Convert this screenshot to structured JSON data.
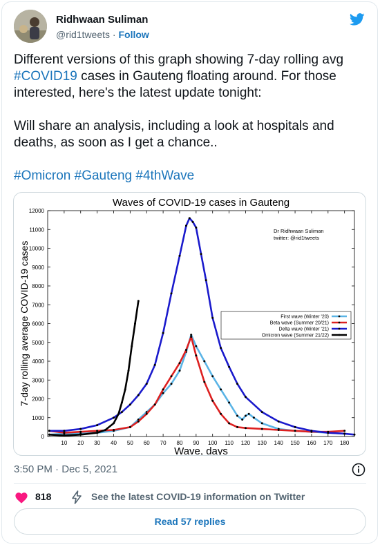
{
  "author": {
    "name": "Ridhwaan Suliman",
    "handle": "@rid1tweets",
    "separator": "·",
    "follow_label": "Follow"
  },
  "tweet": {
    "line1_prefix": "Different versions of this graph showing 7-day rolling avg ",
    "line1_tag": "#COVID19",
    "line1_suffix": " cases in Gauteng floating around. For those interested, here's the latest update tonight:",
    "line2": "Will share an analysis, including a look at hospitals and deaths, as soon as I get a chance..",
    "hashtags": [
      "#Omicron",
      "#Gauteng",
      "#4thWave"
    ]
  },
  "meta": {
    "timestamp": "3:50 PM · Dec 5, 2021",
    "likes": "818",
    "covid_info": "See the latest COVID-19 information on Twitter",
    "replies_label": "Read 57 replies"
  },
  "colors": {
    "link": "#1b75bb",
    "heart": "#f91880",
    "bird": "#1d9bf0"
  },
  "chart_data": {
    "type": "line",
    "title": "Waves of COVID-19 cases in Gauteng",
    "xlabel": "Wave, days",
    "ylabel": "7-day rolling average COVID-19 cases",
    "annotation": [
      "Dr Ridhwaan Suliman",
      "twitter: @rid1tweets"
    ],
    "xlim": [
      0,
      186
    ],
    "ylim": [
      0,
      12000
    ],
    "xticks": [
      10,
      20,
      30,
      40,
      50,
      60,
      70,
      80,
      90,
      100,
      110,
      120,
      130,
      140,
      150,
      160,
      170,
      180
    ],
    "yticks": [
      0,
      1000,
      2000,
      3000,
      4000,
      5000,
      6000,
      7000,
      8000,
      9000,
      10000,
      11000,
      12000
    ],
    "legend_position": "right",
    "series": [
      {
        "name": "First wave (Winter '20)",
        "color": "#5ab4e6",
        "x": [
          1,
          10,
          20,
          30,
          40,
          50,
          55,
          60,
          65,
          70,
          75,
          80,
          84,
          87,
          90,
          95,
          100,
          105,
          110,
          115,
          118,
          120,
          122,
          125,
          130,
          140,
          150,
          160,
          170,
          180
        ],
        "y": [
          100,
          150,
          150,
          200,
          300,
          500,
          900,
          1300,
          1700,
          2300,
          2800,
          3500,
          4500,
          5400,
          4800,
          4000,
          3200,
          2500,
          1800,
          1100,
          900,
          1100,
          1200,
          1000,
          700,
          400,
          300,
          250,
          200,
          150
        ]
      },
      {
        "name": "Beta wave (Summer 20/21)",
        "color": "#dd2020",
        "x": [
          1,
          10,
          20,
          30,
          40,
          50,
          55,
          60,
          65,
          70,
          75,
          80,
          84,
          87,
          90,
          95,
          100,
          105,
          110,
          115,
          120,
          130,
          140,
          150,
          160,
          170,
          180
        ],
        "y": [
          300,
          200,
          250,
          300,
          350,
          500,
          800,
          1200,
          1700,
          2500,
          3200,
          3900,
          4600,
          5300,
          4300,
          2900,
          1900,
          1200,
          700,
          500,
          450,
          400,
          350,
          300,
          250,
          250,
          300
        ]
      },
      {
        "name": "Delta wave (Winter '21)",
        "color": "#1a1acc",
        "x": [
          1,
          10,
          20,
          30,
          40,
          45,
          50,
          55,
          60,
          65,
          70,
          75,
          80,
          84,
          86,
          88,
          90,
          93,
          96,
          100,
          105,
          110,
          115,
          120,
          130,
          140,
          150,
          160,
          170,
          180,
          186
        ],
        "y": [
          300,
          300,
          400,
          600,
          1000,
          1300,
          1700,
          2200,
          2800,
          3800,
          5500,
          7600,
          9600,
          11200,
          11600,
          11400,
          11100,
          9700,
          8300,
          6300,
          4700,
          3700,
          2800,
          2100,
          1300,
          800,
          500,
          300,
          200,
          150,
          100
        ]
      },
      {
        "name": "Omicron wave (Summer 21/22)",
        "color": "#000000",
        "x": [
          1,
          10,
          20,
          30,
          35,
          40,
          43,
          45,
          47,
          49,
          51,
          53,
          55
        ],
        "y": [
          100,
          50,
          100,
          200,
          350,
          700,
          1200,
          1800,
          2500,
          3500,
          4800,
          6000,
          7200
        ]
      }
    ]
  }
}
